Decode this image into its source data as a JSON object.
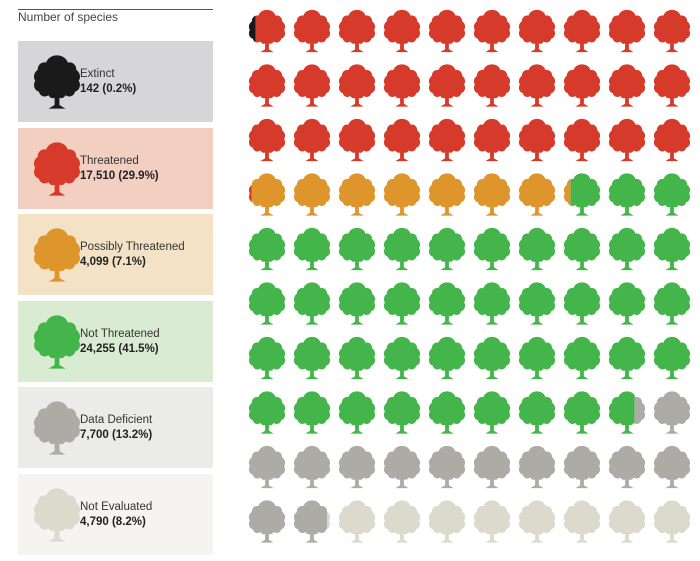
{
  "legend": {
    "title": "Number of species",
    "panels": [
      {
        "name": "Extinct",
        "value": "142 (0.2%)",
        "bg": "#d6d6d8",
        "icon": "black-tree-icon",
        "color": "#1a1a1a"
      },
      {
        "name": "Threatened",
        "value": "17,510 (29.9%)",
        "bg": "#f3cfc2",
        "icon": "red-tree-icon",
        "color": "#d63a2a"
      },
      {
        "name": "Possibly Threatened",
        "value": "4,099 (7.1%)",
        "bg": "#f3e2c6",
        "icon": "orange-tree-icon",
        "color": "#de952b"
      },
      {
        "name": "Not Threatened",
        "value": "24,255 (41.5%)",
        "bg": "#d9ecd3",
        "icon": "green-tree-icon",
        "color": "#43b54a"
      },
      {
        "name": "Data Deficient",
        "value": "7,700 (13.2%)",
        "bg": "#ebebe9",
        "icon": "grey-tree-icon",
        "color": "#adaba6"
      },
      {
        "name": "Not Evaluated",
        "value": "4,790 (8.2%)",
        "bg": "#f5f4f0",
        "icon": "pale-tree-icon",
        "color": "#dcd9cd"
      }
    ]
  },
  "chart_data": {
    "type": "waffle",
    "title": "Number of species",
    "units_total": 100,
    "grid": {
      "rows": 10,
      "cols": 10
    },
    "series": [
      {
        "name": "Extinct",
        "count": 142,
        "percent": 0.2,
        "units": 0.2,
        "color": "#1a1a1a"
      },
      {
        "name": "Threatened",
        "count": 17510,
        "percent": 29.9,
        "units": 29.9,
        "color": "#d63a2a"
      },
      {
        "name": "Possibly Threatened",
        "count": 4099,
        "percent": 7.1,
        "units": 7.1,
        "color": "#de952b"
      },
      {
        "name": "Not Threatened",
        "count": 24255,
        "percent": 41.5,
        "units": 41.5,
        "color": "#43b54a"
      },
      {
        "name": "Data Deficient",
        "count": 7700,
        "percent": 13.2,
        "units": 13.2,
        "color": "#adaba6"
      },
      {
        "name": "Not Evaluated",
        "count": 4790,
        "percent": 8.2,
        "units": 8.2,
        "color": "#dcd9cd"
      }
    ]
  }
}
